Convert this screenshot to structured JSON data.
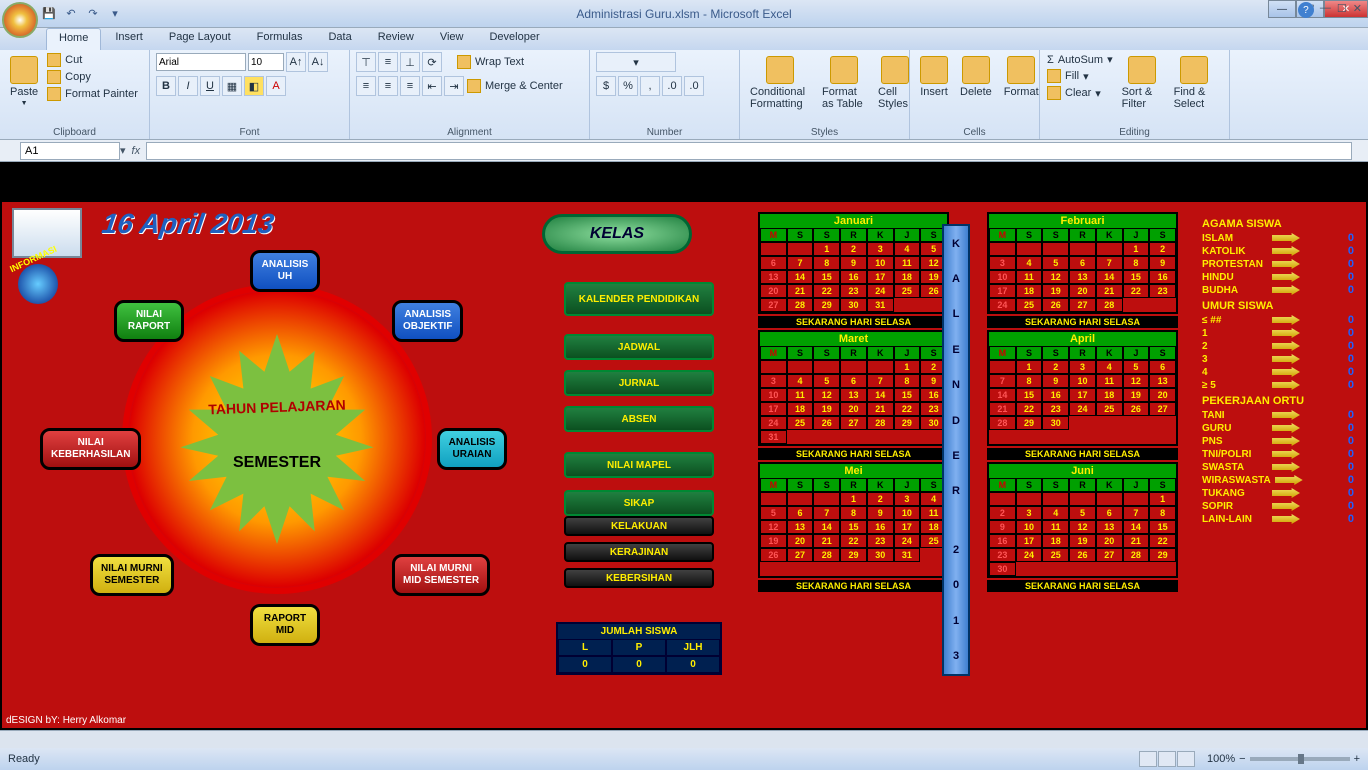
{
  "title": "Administrasi Guru.xlsm - Microsoft Excel",
  "tabs": [
    "Home",
    "Insert",
    "Page Layout",
    "Formulas",
    "Data",
    "Review",
    "View",
    "Developer"
  ],
  "activeTab": "Home",
  "clipboard": {
    "cut": "Cut",
    "copy": "Copy",
    "fp": "Format Painter",
    "paste": "Paste",
    "label": "Clipboard"
  },
  "font": {
    "name": "Arial",
    "size": "10",
    "label": "Font"
  },
  "alignment": {
    "wrap": "Wrap Text",
    "merge": "Merge & Center",
    "label": "Alignment"
  },
  "number": {
    "label": "Number"
  },
  "styles": {
    "cond": "Conditional Formatting",
    "fmt": "Format as Table",
    "cell": "Cell Styles",
    "label": "Styles"
  },
  "cells": {
    "ins": "Insert",
    "del": "Delete",
    "fmt": "Format",
    "label": "Cells"
  },
  "editing": {
    "sum": "AutoSum",
    "fill": "Fill",
    "clear": "Clear",
    "sort": "Sort & Filter",
    "find": "Find & Select",
    "label": "Editing"
  },
  "namebox": "A1",
  "date": "16 April 2013",
  "info": "INFORMASI",
  "starTop": "TAHUN PELAJARAN",
  "starSub": "SEMESTER",
  "nodes": {
    "analisisUH": "ANALISIS\nUH",
    "analisisObj": "ANALISIS\nOBJEKTIF",
    "analisisUraian": "ANALISIS\nURAIAN",
    "nilaiMurniMid": "NILAI MURNI\nMID SEMESTER",
    "raportMid": "RAPORT\nMID",
    "nilaiMurniSem": "NILAI MURNI\nSEMESTER",
    "nilaiKeberhasilan": "NILAI\nKEBERHASILAN",
    "nilaiRaport": "NILAI\nRAPORT"
  },
  "kelas": "KELAS",
  "menus": {
    "kalp": "KALENDER PENDIDIKAN",
    "jadwal": "JADWAL",
    "jurnal": "JURNAL",
    "absen": "ABSEN",
    "nilai": "NILAI MAPEL",
    "sikap": "SIKAP",
    "kelakuan": "KELAKUAN",
    "kerajinan": "KERAJINAN",
    "kebersihan": "KEBERSIHAN"
  },
  "siswa": {
    "title": "JUMLAH SISWA",
    "L": "L",
    "P": "P",
    "JLH": "JLH",
    "vL": "0",
    "vP": "0",
    "vJ": "0"
  },
  "kalStrip": "KALENDER 2013",
  "dayHdr": [
    "M",
    "S",
    "S",
    "R",
    "K",
    "J",
    "S"
  ],
  "calFoot": "SEKARANG HARI SELASA",
  "months": [
    {
      "name": "Januari",
      "start": 2,
      "days": 31
    },
    {
      "name": "Februari",
      "start": 5,
      "days": 28
    },
    {
      "name": "Maret",
      "start": 5,
      "days": 31
    },
    {
      "name": "April",
      "start": 1,
      "days": 30
    },
    {
      "name": "Mei",
      "start": 3,
      "days": 31
    },
    {
      "name": "Juni",
      "start": 6,
      "days": 30
    }
  ],
  "stats": {
    "agama": {
      "title": "AGAMA SISWA",
      "rows": [
        [
          "ISLAM",
          "0"
        ],
        [
          "KATOLIK",
          "0"
        ],
        [
          "PROTESTAN",
          "0"
        ],
        [
          "HINDU",
          "0"
        ],
        [
          "BUDHA",
          "0"
        ]
      ]
    },
    "umur": {
      "title": "UMUR SISWA",
      "rows": [
        [
          "≤  ##",
          "0"
        ],
        [
          "1",
          "0"
        ],
        [
          "2",
          "0"
        ],
        [
          "3",
          "0"
        ],
        [
          "4",
          "0"
        ],
        [
          "≥  5",
          "0"
        ]
      ]
    },
    "kerja": {
      "title": "PEKERJAAN ORTU",
      "rows": [
        [
          "TANI",
          "0"
        ],
        [
          "GURU",
          "0"
        ],
        [
          "PNS",
          "0"
        ],
        [
          "TNI/POLRI",
          "0"
        ],
        [
          "SWASTA",
          "0"
        ],
        [
          "WIRASWASTA",
          "0"
        ],
        [
          "TUKANG",
          "0"
        ],
        [
          "SOPIR",
          "0"
        ],
        [
          "LAIN-LAIN",
          "0"
        ]
      ]
    }
  },
  "design": "dESIGN bY: Herry Alkomar",
  "status": "Ready",
  "zoom": "100%"
}
